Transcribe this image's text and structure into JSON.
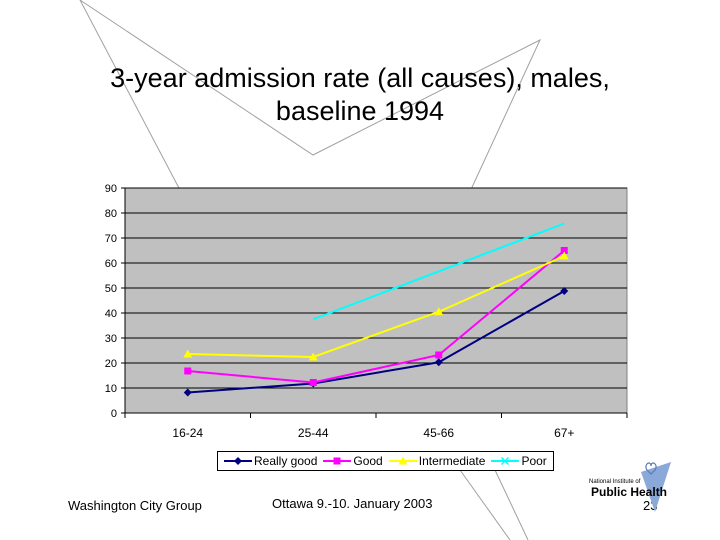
{
  "slide": {
    "title_line1": "3-year admission rate (all causes), males,",
    "title_line2": "baseline 1994",
    "footer_left": "Washington City Group",
    "footer_center": "Ottawa 9.-10. January 2003",
    "page_number": "23",
    "logo_line1": "National Institute of",
    "logo_line2": "Public Health"
  },
  "chart_data": {
    "type": "line",
    "title": "3-year admission rate (all causes), males, baseline 1994",
    "categories": [
      "16-24",
      "25-44",
      "45-66",
      "67+"
    ],
    "ylim": [
      0,
      90
    ],
    "yticks": [
      0,
      10,
      20,
      30,
      40,
      50,
      60,
      70,
      80,
      90
    ],
    "grid": true,
    "legend_position": "bottom",
    "plot_background": "#c0c0c0",
    "series": [
      {
        "name": "Really good",
        "values": [
          8.2,
          11.8,
          20.3,
          48.8
        ],
        "color": "#000080",
        "marker": "diamond"
      },
      {
        "name": "Good",
        "values": [
          16.8,
          12.2,
          23.2,
          65
        ],
        "color": "#ff00ff",
        "marker": "square"
      },
      {
        "name": "Intermediate",
        "values": [
          23.6,
          22.4,
          40.5,
          62.8
        ],
        "color": "#ffff00",
        "marker": "triangle"
      },
      {
        "name": "Poor",
        "values": [
          null,
          37.5,
          null,
          75.8
        ],
        "color": "#00ffff",
        "marker": "x"
      }
    ]
  }
}
